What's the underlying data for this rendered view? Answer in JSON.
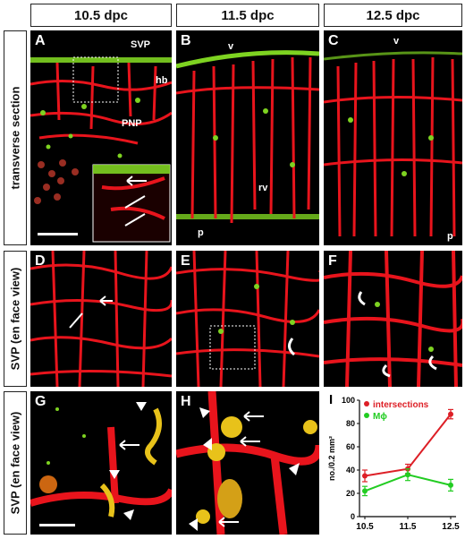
{
  "columns": [
    "10.5 dpc",
    "11.5 dpc",
    "12.5 dpc"
  ],
  "rows": [
    "transverse section",
    "SVP (en face view)",
    "SVP (en face view)"
  ],
  "panels": {
    "A": {
      "label": "A",
      "ann": {
        "svp": "SVP",
        "hb": "hb",
        "pnp": "PNP"
      }
    },
    "B": {
      "label": "B",
      "ann": {
        "v": "v",
        "rv": "rv",
        "p": "p"
      }
    },
    "C": {
      "label": "C",
      "ann": {
        "v": "v",
        "p": "p"
      }
    },
    "D": {
      "label": "D"
    },
    "E": {
      "label": "E"
    },
    "F": {
      "label": "F"
    },
    "G": {
      "label": "G"
    },
    "H": {
      "label": "H"
    },
    "I": {
      "label": "I"
    }
  },
  "colors": {
    "vessel": "#e8141c",
    "macrophage": "#7ed321",
    "green_series": "#22cc22",
    "red_series": "#dd1f26",
    "background": "#000000"
  },
  "chart_data": {
    "type": "line",
    "x": [
      10.5,
      11.5,
      12.5
    ],
    "xtick_labels": [
      "10.5",
      "11.5",
      "12.5"
    ],
    "ylabel": "no./0.2 mm²",
    "yticks": [
      "0",
      "20",
      "40",
      "60",
      "80",
      "100"
    ],
    "ylim": [
      0,
      100
    ],
    "series": [
      {
        "name": "intersections",
        "values": [
          35,
          41,
          88
        ],
        "errors": [
          5,
          4,
          4
        ]
      },
      {
        "name": "Mϕ",
        "values": [
          22,
          36,
          27
        ],
        "errors": [
          4,
          5,
          5
        ]
      }
    ],
    "legend": "top-left"
  }
}
